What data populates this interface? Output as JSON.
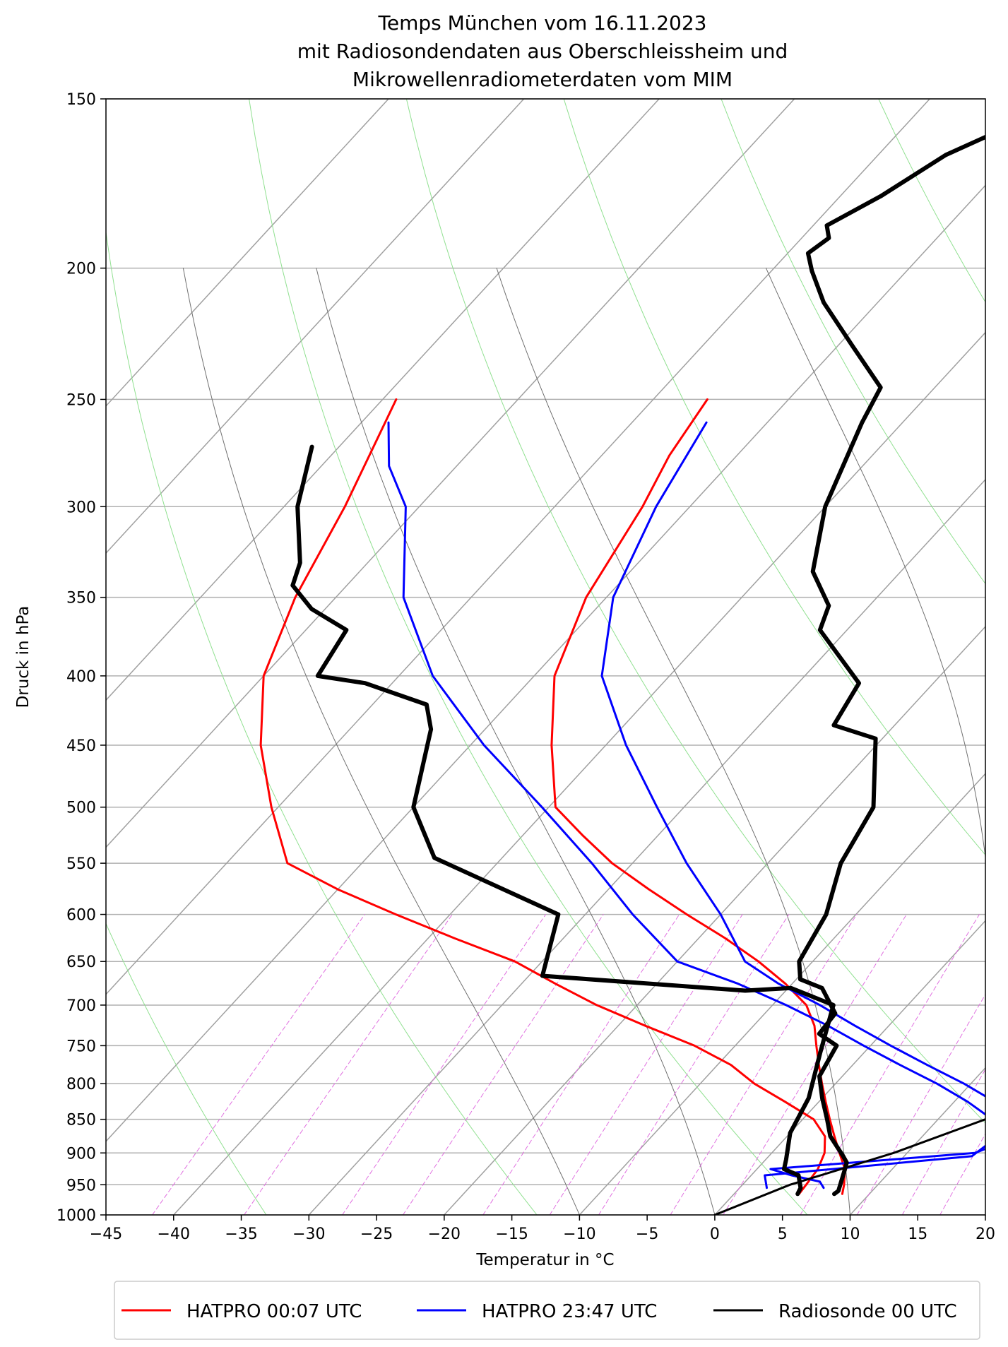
{
  "chart_data": {
    "type": "line",
    "chart_kind": "Skew-T log-P",
    "title": "Temps München vom 16.11.2023",
    "subtitle_lines": [
      "mit Radiosondendaten aus Oberschleissheim und",
      "Mikrowellenradiometerdaten vom MIM"
    ],
    "xlabel": "Temperatur in  °C",
    "ylabel": "Druck in hPa",
    "xlim": [
      -45,
      20
    ],
    "ylim": [
      1000,
      150
    ],
    "yscale": "log",
    "skew_deg_per_log": 40,
    "x_ticks": [
      -45,
      -40,
      -35,
      -30,
      -25,
      -20,
      -15,
      -10,
      -5,
      0,
      5,
      10,
      15,
      20
    ],
    "x_tick_labels": [
      "−45",
      "−40",
      "−35",
      "−30",
      "−25",
      "−20",
      "−15",
      "−10",
      "−5",
      "0",
      "5",
      "10",
      "15",
      "20"
    ],
    "y_ticks": [
      150,
      200,
      250,
      300,
      350,
      400,
      450,
      500,
      550,
      600,
      650,
      700,
      750,
      800,
      850,
      900,
      950,
      1000
    ],
    "y_tick_labels": [
      "150",
      "200",
      "250",
      "300",
      "350",
      "400",
      "450",
      "500",
      "550",
      "600",
      "650",
      "700",
      "750",
      "800",
      "850",
      "900",
      "950",
      "1000"
    ],
    "grid": true,
    "legend_position": "bottom",
    "background_lines": {
      "isotherms": [
        -100,
        -90,
        -80,
        -70,
        -60,
        -50,
        -40,
        -30,
        -20,
        -10,
        0,
        10,
        20,
        30
      ],
      "dry_adiabats_theta_K": [
        200,
        220,
        240,
        260,
        280,
        300,
        320,
        340,
        360,
        380,
        400,
        420,
        440,
        460
      ],
      "moist_adiabats_T0": [
        -10,
        0,
        10,
        20,
        30
      ],
      "mixing_ratio_lines_gkg": [
        0.1,
        0.2,
        0.4,
        0.6,
        1,
        1.5,
        2,
        3,
        4,
        6,
        8,
        10,
        12,
        16,
        20,
        24,
        28
      ],
      "colors": {
        "isotherm": "#a0a0a0",
        "dry_adiabat": "#90e090",
        "moist_adiabat": "#707070",
        "mixing_ratio": "#e070e0"
      }
    },
    "series": [
      {
        "name": "HATPRO 00:07 UTC",
        "color": "#ff0000",
        "kind": "temperature",
        "x": [
          8.0,
          7.5,
          6.5,
          5.0,
          3.5,
          2.0,
          0.5,
          -1.0,
          -2.5,
          -4.0,
          -5.5,
          -7.5,
          -10.5,
          -14.0,
          -18.0,
          -22.5,
          -27.0,
          -31.5,
          -35.5,
          -39.5,
          -44.0,
          -48.5,
          -51.5,
          -53.5,
          -55.0,
          -56.0
        ],
        "y": [
          965,
          950,
          925,
          900,
          875,
          850,
          825,
          800,
          775,
          750,
          725,
          700,
          675,
          650,
          625,
          600,
          575,
          550,
          525,
          500,
          450,
          400,
          350,
          300,
          275,
          250
        ]
      },
      {
        "name": "HATPRO 00:07 UTC",
        "color": "#ff0000",
        "kind": "dewpoint",
        "x": [
          4.8,
          4.7,
          4.5,
          3.9,
          2.8,
          0.8,
          -2.5,
          -6.0,
          -9.0,
          -13.0,
          -18.0,
          -23.0,
          -27.5,
          -32.0,
          -38.0,
          -44.0,
          -50.0,
          -55.5,
          -60.5,
          -65.5,
          -70.0,
          -73.0,
          -75.5,
          -79.0
        ],
        "y": [
          965,
          950,
          925,
          900,
          875,
          850,
          825,
          800,
          775,
          750,
          725,
          700,
          675,
          650,
          625,
          600,
          575,
          550,
          500,
          450,
          400,
          350,
          300,
          250
        ]
      },
      {
        "name": "HATPRO 23:47 UTC",
        "color": "#0000ff",
        "kind": "temperature",
        "x": [
          6.2,
          5.5,
          3.0,
          1.0,
          15.0,
          17.5,
          16.0,
          13.0,
          9.5,
          5.5,
          1.5,
          -2.5,
          -6.5,
          -11.0,
          -15.0,
          -20.0,
          -26.0,
          -32.0,
          -38.5,
          -45.0,
          -49.5,
          -52.5,
          -54.5
        ],
        "y": [
          955,
          945,
          935,
          925,
          900,
          870,
          850,
          825,
          800,
          775,
          750,
          725,
          700,
          675,
          650,
          600,
          550,
          500,
          450,
          400,
          350,
          300,
          260
        ]
      },
      {
        "name": "HATPRO 23:47 UTC",
        "color": "#0000ff",
        "kind": "dewpoint",
        "x": [
          2.0,
          1.0,
          15.0,
          15.5,
          14.0,
          11.0,
          7.5,
          3.5,
          -0.5,
          -4.5,
          -9.0,
          -14.0,
          -20.0,
          -26.5,
          -33.0,
          -40.5,
          -49.0,
          -57.5,
          -65.0,
          -71.0,
          -75.0,
          -78.0
        ],
        "y": [
          955,
          935,
          905,
          880,
          850,
          825,
          800,
          775,
          750,
          725,
          700,
          675,
          650,
          600,
          550,
          500,
          450,
          400,
          350,
          300,
          280,
          260
        ]
      },
      {
        "name": "Radiosonde 00 UTC",
        "color": "#000000",
        "kind": "temperature",
        "x": [
          7.4,
          7.5,
          6.5,
          6.2,
          5.5,
          3.2,
          1.8,
          0.0,
          -1.7,
          -2.5,
          -4.6,
          -4.8,
          -7.5,
          -9.7,
          -11.0,
          -12.2,
          -14.6,
          -16.0,
          -20.5,
          -24.5,
          -25.5,
          -32.0,
          -33.0,
          -36.5,
          -40.0,
          -43.0,
          -44.0,
          -49.0,
          -54.0,
          -57.0,
          -58.5,
          -58.0,
          -59.0,
          -57.0,
          -55.0,
          -51.5,
          -45.5
        ],
        "y": [
          965,
          960,
          925,
          915,
          905,
          875,
          850,
          820,
          790,
          750,
          735,
          710,
          680,
          670,
          650,
          600,
          550,
          500,
          445,
          435,
          405,
          370,
          355,
          335,
          300,
          260,
          245,
          228,
          212,
          201,
          195,
          190,
          186,
          177,
          165,
          155,
          140
        ]
      },
      {
        "name": "Radiosonde 00 UTC",
        "color": "#000000",
        "kind": "dewpoint",
        "x": [
          4.7,
          4.5,
          3.5,
          2.0,
          1.5,
          0.0,
          -1.0,
          -3.2,
          -5.5,
          -9.8,
          -13.0,
          -29.0,
          -32.0,
          -45.0,
          -50.0,
          -54.0,
          -56.0,
          -62.0,
          -66.0,
          -67.0,
          -71.0,
          -74.0,
          -75.0,
          -79.0,
          -82.0
        ],
        "y": [
          965,
          955,
          935,
          925,
          910,
          870,
          820,
          760,
          700,
          680,
          683,
          666,
          600,
          545,
          500,
          438,
          420,
          405,
          400,
          370,
          357,
          343,
          330,
          300,
          271
        ]
      },
      {
        "name": "",
        "color": "#000000",
        "kind": "parcel",
        "x": [
          0.0,
          3.5,
          9.0,
          13.5,
          18.5,
          25.0
        ],
        "y": [
          1000,
          950,
          900,
          850,
          800,
          750
        ]
      }
    ],
    "legend": [
      {
        "label": "HATPRO 00:07 UTC",
        "color": "#ff0000"
      },
      {
        "label": "HATPRO 23:47 UTC",
        "color": "#0000ff"
      },
      {
        "label": "Radiosonde 00 UTC",
        "color": "#000000"
      }
    ]
  }
}
